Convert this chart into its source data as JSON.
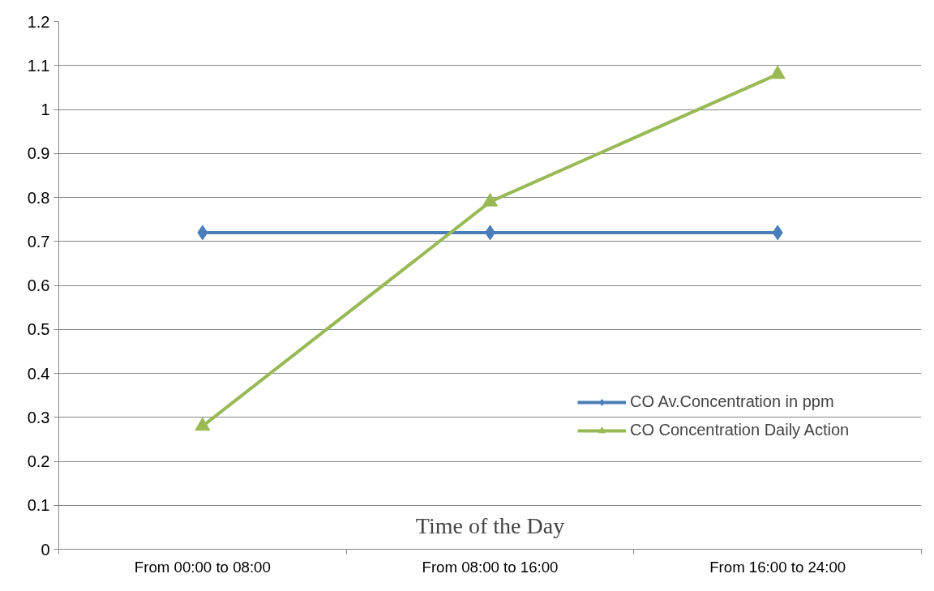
{
  "chart_data": {
    "type": "line",
    "xlabel": "Time of the Day",
    "categories": [
      "From 00:00 to 08:00",
      "From 08:00 to 16:00",
      "From 16:00 to 24:00"
    ],
    "series": [
      {
        "name": "CO Av.Concentration in ppm",
        "color": "#4a7ebb",
        "marker": "diamond",
        "values": [
          0.72,
          0.72,
          0.72
        ]
      },
      {
        "name": "CO Concentration Daily Action",
        "color": "#98b954",
        "marker": "triangle",
        "values": [
          0.28,
          0.79,
          1.08
        ]
      }
    ],
    "ylim": [
      0,
      1.2
    ],
    "yticks": [
      0,
      0.1,
      0.2,
      0.3,
      0.4,
      0.5,
      0.6,
      0.7,
      0.8,
      0.9,
      1,
      1.1,
      1.2
    ],
    "grid": "y",
    "legend": "right",
    "line_style": "solid"
  }
}
